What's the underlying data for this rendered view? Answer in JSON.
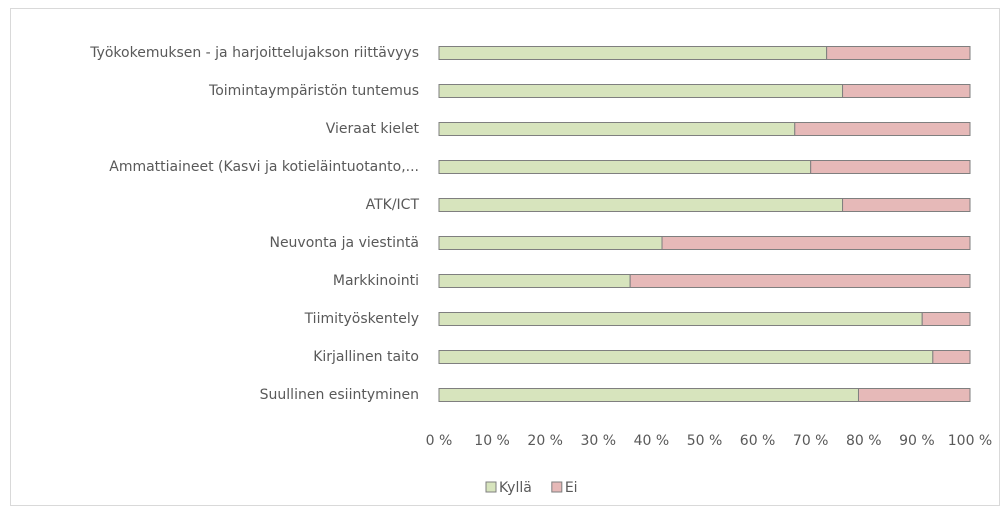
{
  "chart_data": {
    "type": "stacked_barh",
    "categories": [
      "Työkokemuksen - ja harjoittelujakson riittävyys",
      "Toimintaympäristön tuntemus",
      "Vieraat kielet",
      "Ammattiaineet (Kasvi ja kotieläintuotanto,...",
      "ATK/ICT",
      "Neuvonta ja viestintä",
      "Markkinointi",
      "Tiimityöskentely",
      "Kirjallinen taito",
      "Suullinen esiintyminen"
    ],
    "series": [
      {
        "name": "Kyllä",
        "color": "#d7e4bd",
        "values": [
          73,
          76,
          67,
          70,
          76,
          42,
          36,
          91,
          93,
          79
        ]
      },
      {
        "name": "Ei",
        "color": "#e6b9b8",
        "values": [
          27,
          24,
          33,
          30,
          24,
          58,
          64,
          9,
          7,
          21
        ]
      }
    ],
    "xlim": [
      0,
      100
    ],
    "xticks": [
      {
        "value": 0,
        "label": "0 %"
      },
      {
        "value": 10,
        "label": "10 %"
      },
      {
        "value": 20,
        "label": "20 %"
      },
      {
        "value": 30,
        "label": "30 %"
      },
      {
        "value": 40,
        "label": "40 %"
      },
      {
        "value": 50,
        "label": "50 %"
      },
      {
        "value": 60,
        "label": "60 %"
      },
      {
        "value": 70,
        "label": "70 %"
      },
      {
        "value": 80,
        "label": "80 %"
      },
      {
        "value": 90,
        "label": "90 %"
      },
      {
        "value": 100,
        "label": "100 %"
      }
    ],
    "legend": "bottom"
  }
}
